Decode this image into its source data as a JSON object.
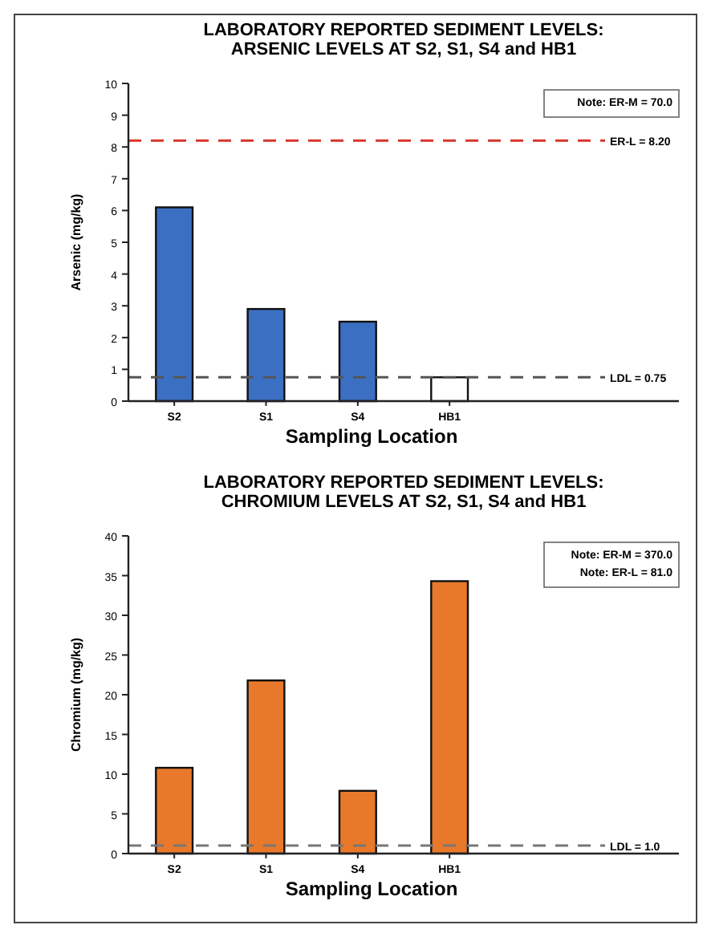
{
  "chart_data": [
    {
      "type": "bar",
      "title": "LABORATORY REPORTED SEDIMENT LEVELS:\nARSENIC LEVELS AT S2, S1, S4 and HB1",
      "xlabel": "Sampling Location",
      "ylabel": "Arsenic (mg/kg)",
      "categories": [
        "S2",
        "S1",
        "S4",
        "HB1"
      ],
      "values": [
        6.1,
        2.9,
        2.5,
        0.75
      ],
      "colors": [
        "#3b6fc2",
        "#3b6fc2",
        "#3b6fc2",
        "#ffffff"
      ],
      "ylim": [
        0,
        10
      ],
      "yticks": [
        0,
        1,
        2,
        3,
        4,
        5,
        6,
        7,
        8,
        9,
        10
      ],
      "ref_lines": [
        {
          "axis": "y",
          "value": 8.2,
          "label": "ER-L = 8.20",
          "color": "#d9342b",
          "line_style": "dashed"
        },
        {
          "axis": "y",
          "value": 0.75,
          "label": "LDL = 0.75",
          "color": "#555555",
          "line_style": "dashed"
        }
      ],
      "annotations": [
        "Note: ER-M = 70.0"
      ]
    },
    {
      "type": "bar",
      "title": "LABORATORY REPORTED SEDIMENT LEVELS:\nCHROMIUM LEVELS AT S2, S1, S4 and HB1",
      "xlabel": "Sampling Location",
      "ylabel": "Chromium (mg/kg)",
      "categories": [
        "S2",
        "S1",
        "S4",
        "HB1"
      ],
      "values": [
        10.8,
        21.8,
        7.9,
        34.3
      ],
      "colors": [
        "#e8792b",
        "#e8792b",
        "#e8792b",
        "#e8792b"
      ],
      "ylim": [
        0,
        40
      ],
      "yticks": [
        0,
        5,
        10,
        15,
        20,
        25,
        30,
        35,
        40
      ],
      "ref_lines": [
        {
          "axis": "y",
          "value": 1.0,
          "label": "LDL = 1.0",
          "color": "#777777",
          "line_style": "dashed"
        }
      ],
      "annotations": [
        "Note: ER-M = 370.0",
        "Note: ER-L = 81.0"
      ]
    }
  ]
}
